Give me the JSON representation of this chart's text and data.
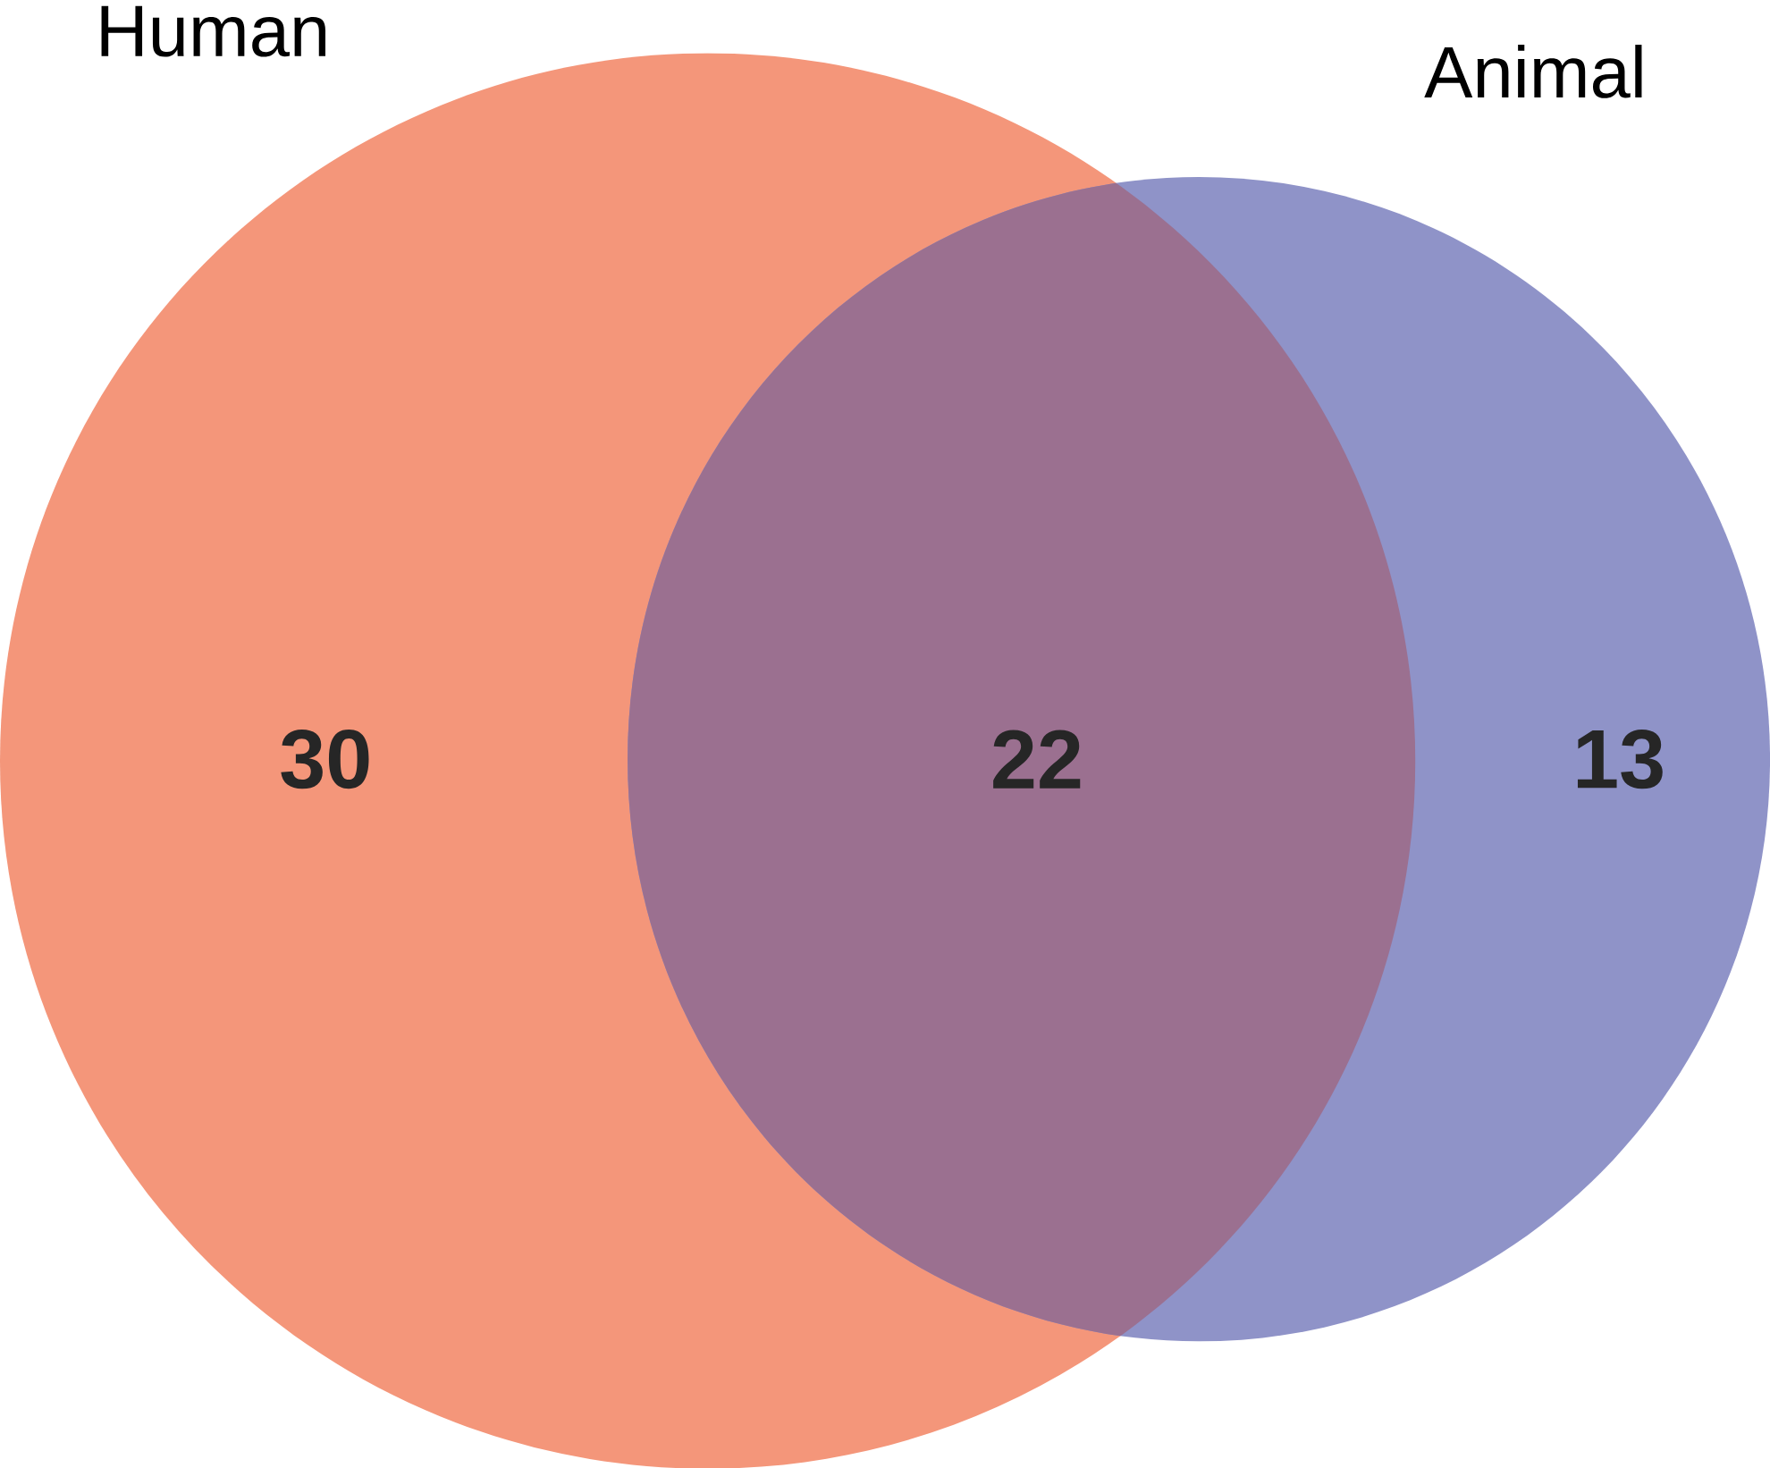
{
  "chart_data": {
    "type": "other",
    "annotations": [
      "Human",
      "Animal"
    ],
    "categories": [
      null,
      null,
      null
    ],
    "values": [
      30,
      22,
      13
    ],
    "colors": [
      "#f4967a",
      "#9b7090",
      "#8f93c8"
    ],
    "data_labels": true
  }
}
